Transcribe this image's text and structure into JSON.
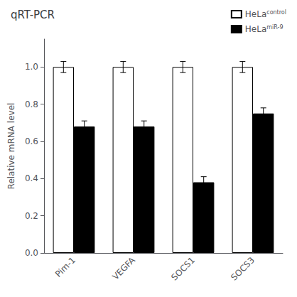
{
  "chart_data": {
    "type": "bar",
    "title": "qRT-PCR",
    "ylabel": "Relative mRNA level",
    "categories": [
      "Pim-1",
      "VEGFA",
      "SOCS1",
      "SOCS3"
    ],
    "series": [
      {
        "name": "HeLa control",
        "color": "white",
        "values": [
          1.0,
          1.0,
          1.0,
          1.0
        ],
        "errors": [
          0.03,
          0.03,
          0.03,
          0.03
        ]
      },
      {
        "name": "HeLa miR-9",
        "color": "black",
        "values": [
          0.68,
          0.68,
          0.38,
          0.75
        ],
        "errors": [
          0.03,
          0.03,
          0.03,
          0.03
        ]
      }
    ],
    "ylim": [
      0,
      1.15
    ],
    "yticks": [
      {
        "value": 0.0,
        "label": "0.0"
      },
      0.2,
      0.4,
      0.6,
      0.8,
      {
        "value": 1.0,
        "label": "1.0"
      }
    ],
    "grid": false,
    "legend": "upper right"
  }
}
